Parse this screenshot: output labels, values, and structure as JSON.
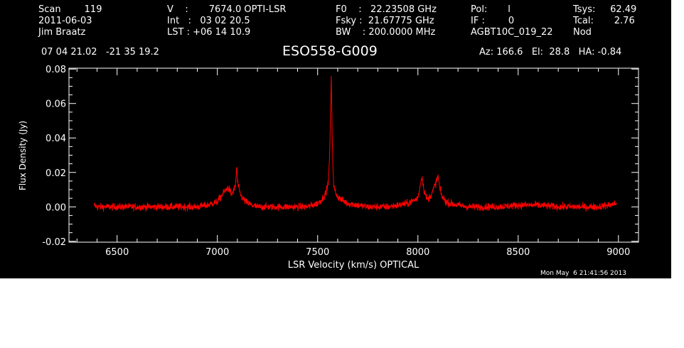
{
  "header": {
    "col1": [
      "Scan        119",
      "2011-06-03",
      "Jim Braatz"
    ],
    "col2": [
      "V    :       7674.0 OPTI-LSR",
      "Int   :   03 02 20.5",
      "LST : +06 14 10.9"
    ],
    "col3": [
      "F0    :   22.23508 GHz",
      "Fsky :  21.67775 GHz",
      "BW    : 200.0000 MHz"
    ],
    "col4": [
      "Pol:       l",
      "IF :        0",
      "AGBT10C_019_22"
    ],
    "col5": [
      "Tsys:     62.49",
      "Tcal:       2.76",
      "Nod"
    ],
    "coords": "07 04 21.02   -21 35 19.2",
    "source": "ESO558-G009",
    "pointing": "Az: 166.6   El:  28.8   HA: -0.84",
    "timestamp": "Mon May  6 21:41:56 2013"
  },
  "chart_data": {
    "type": "line",
    "title": "ESO558-G009",
    "xlabel": "LSR Velocity (km/s) OPTICAL",
    "ylabel": "Flux Density (Jy)",
    "xlim": [
      6260,
      9100
    ],
    "ylim": [
      -0.0205,
      0.0805
    ],
    "x_ticks": [
      6500,
      7000,
      7500,
      8000,
      8500,
      9000
    ],
    "y_ticks": [
      -0.02,
      0.0,
      0.02,
      0.04,
      0.06,
      0.08
    ],
    "x_tick_labels": [
      "6500",
      "7000",
      "7500",
      "8000",
      "8500",
      "9000"
    ],
    "y_tick_labels": [
      "-0.02",
      "0.00",
      "0.02",
      "0.04",
      "0.06",
      "0.08"
    ],
    "grid": false,
    "line_color": "#ff0000",
    "series": [
      {
        "x": [
          6385,
          6400,
          6450,
          6500,
          6550,
          6600,
          6650,
          6700,
          6750,
          6800,
          6850,
          6900,
          6950,
          7000,
          7030,
          7050,
          7060,
          7070,
          7080,
          7090,
          7097,
          7100,
          7110,
          7120,
          7140,
          7170,
          7200,
          7250,
          7300,
          7350,
          7400,
          7450,
          7500,
          7520,
          7540,
          7550,
          7555,
          7560,
          7565,
          7568,
          7572,
          7576,
          7580,
          7590,
          7600,
          7620,
          7650,
          7700,
          7750,
          7800,
          7850,
          7900,
          7950,
          8000,
          8020,
          8030,
          8040,
          8050,
          8070,
          8090,
          8100,
          8110,
          8120,
          8140,
          8160,
          8200,
          8250,
          8300,
          8400,
          8500,
          8600,
          8700,
          8800,
          8900,
          8950,
          8990
        ],
        "y": [
          0.001,
          0.0,
          0.0,
          0.0,
          0.0,
          0.0,
          0.0,
          0.0,
          0.0,
          0.0,
          0.0,
          0.0,
          0.001,
          0.003,
          0.008,
          0.011,
          0.01,
          0.007,
          0.009,
          0.012,
          0.024,
          0.015,
          0.009,
          0.006,
          0.003,
          0.001,
          0.0,
          0.0,
          0.0,
          0.0,
          0.0,
          0.0,
          0.002,
          0.004,
          0.008,
          0.012,
          0.018,
          0.03,
          0.06,
          0.075,
          0.045,
          0.025,
          0.012,
          0.008,
          0.006,
          0.004,
          0.002,
          0.001,
          0.0,
          0.0,
          0.0,
          0.001,
          0.002,
          0.005,
          0.018,
          0.01,
          0.006,
          0.004,
          0.008,
          0.014,
          0.018,
          0.01,
          0.006,
          0.003,
          0.002,
          0.001,
          0.0,
          0.0,
          0.0,
          0.001,
          0.001,
          0.0,
          0.0,
          0.0,
          0.001,
          0.002
        ]
      }
    ]
  }
}
